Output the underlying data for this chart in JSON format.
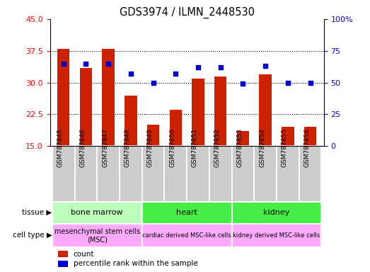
{
  "title": "GDS3974 / ILMN_2448530",
  "samples": [
    "GSM787845",
    "GSM787846",
    "GSM787847",
    "GSM787848",
    "GSM787849",
    "GSM787850",
    "GSM787851",
    "GSM787852",
    "GSM787853",
    "GSM787854",
    "GSM787855",
    "GSM787856"
  ],
  "bar_values": [
    38.0,
    33.5,
    38.0,
    27.0,
    20.0,
    23.5,
    31.0,
    31.5,
    18.5,
    32.0,
    19.5,
    19.5
  ],
  "dot_values": [
    65,
    65,
    65,
    57,
    50,
    57,
    62,
    62,
    49,
    63,
    50,
    50
  ],
  "bar_bottom": 15,
  "ylim_left": [
    15,
    45
  ],
  "ylim_right": [
    0,
    100
  ],
  "yticks_left": [
    15,
    22.5,
    30,
    37.5,
    45
  ],
  "yticks_right": [
    0,
    25,
    50,
    75,
    100
  ],
  "bar_color": "#cc2200",
  "dot_color": "#0000cc",
  "tissue_groups": [
    {
      "label": "bone marrow",
      "start": 0,
      "end": 3,
      "color": "#bbffbb"
    },
    {
      "label": "heart",
      "start": 4,
      "end": 7,
      "color": "#44ee44"
    },
    {
      "label": "kidney",
      "start": 8,
      "end": 11,
      "color": "#44ee44"
    }
  ],
  "cell_type_groups": [
    {
      "label": "mesenchymal stem cells\n(MSC)",
      "start": 0,
      "end": 3,
      "color": "#ffaaff",
      "fontsize": 7
    },
    {
      "label": "cardiac derived MSC-like cells",
      "start": 4,
      "end": 7,
      "color": "#ffaaff",
      "fontsize": 6
    },
    {
      "label": "kidney derived MSC-like cells",
      "start": 8,
      "end": 11,
      "color": "#ffaaff",
      "fontsize": 6
    }
  ],
  "legend_count_color": "#cc2200",
  "legend_dot_color": "#0000cc",
  "sample_bg_color": "#cccccc",
  "label_fontsize": 6.5,
  "axis_fontsize": 8
}
